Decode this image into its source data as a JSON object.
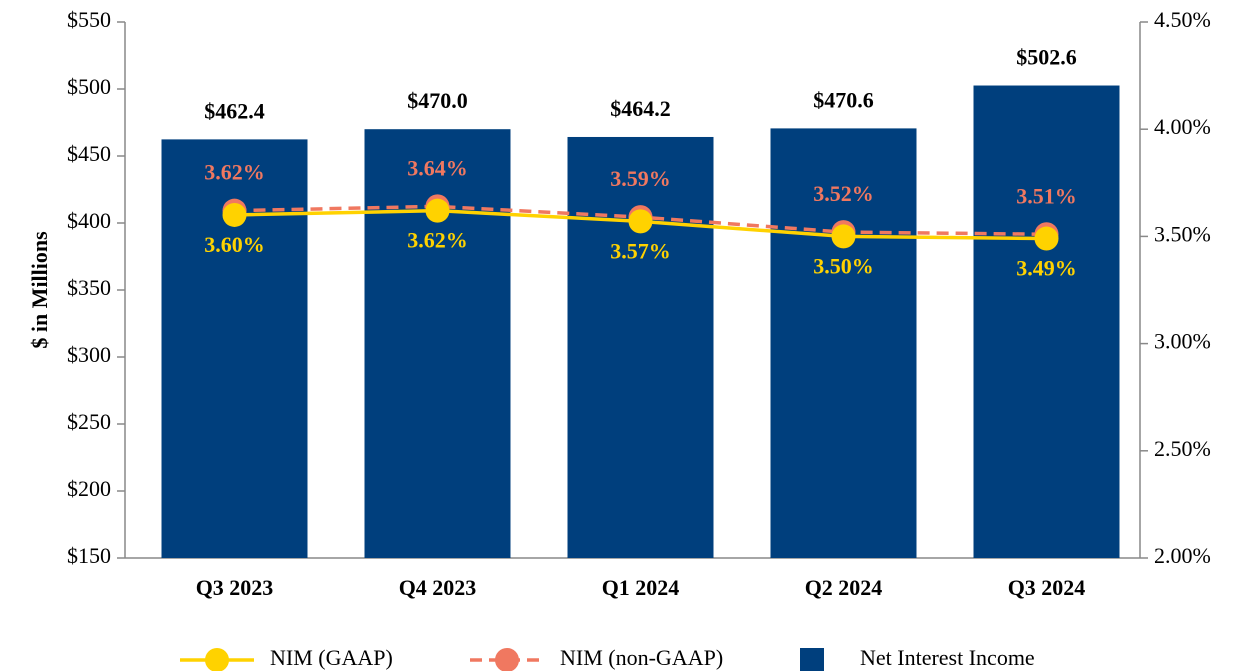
{
  "chart_data": {
    "type": "bar",
    "categories": [
      "Q3 2023",
      "Q4 2023",
      "Q1 2024",
      "Q2 2024",
      "Q3 2024"
    ],
    "ylabel": "$ in Millions",
    "ylim": [
      150,
      550
    ],
    "yticks": [
      {
        "value": 150,
        "label": "$150"
      },
      {
        "value": 200,
        "label": "$200"
      },
      {
        "value": 250,
        "label": "$250"
      },
      {
        "value": 300,
        "label": "$300"
      },
      {
        "value": 350,
        "label": "$350"
      },
      {
        "value": 400,
        "label": "$400"
      },
      {
        "value": 450,
        "label": "$450"
      },
      {
        "value": 500,
        "label": "$500"
      },
      {
        "value": 550,
        "label": "$550"
      }
    ],
    "y2lim": [
      2,
      4.5
    ],
    "y2ticks": [
      {
        "value": 2,
        "label": "2.00%"
      },
      {
        "value": 2.5,
        "label": "2.50%"
      },
      {
        "value": 3,
        "label": "3.00%"
      },
      {
        "value": 3.5,
        "label": "3.50%"
      },
      {
        "value": 4,
        "label": "4.00%"
      },
      {
        "value": 4.5,
        "label": "4.50%"
      }
    ],
    "legend": "bottom",
    "series": [
      {
        "name": "Net Interest Income",
        "type": "bar",
        "color": "#003f7d",
        "values": [
          462.4,
          470.0,
          464.2,
          470.6,
          502.6
        ],
        "value_labels": [
          "$462.4",
          "$470.0",
          "$464.2",
          "$470.6",
          "$502.6"
        ]
      },
      {
        "name": "NIM (GAAP)",
        "type": "line",
        "axis": "y2",
        "color": "#ffd200",
        "values": [
          3.6,
          3.62,
          3.57,
          3.5,
          3.49
        ],
        "value_labels": [
          "3.60%",
          "3.62%",
          "3.57%",
          "3.50%",
          "3.49%"
        ]
      },
      {
        "name": "NIM (non-GAAP)",
        "type": "line",
        "axis": "y2",
        "color": "#f07860",
        "dashed": true,
        "values": [
          3.62,
          3.64,
          3.59,
          3.52,
          3.51
        ],
        "value_labels": [
          "3.62%",
          "3.64%",
          "3.59%",
          "3.52%",
          "3.51%"
        ]
      }
    ]
  }
}
